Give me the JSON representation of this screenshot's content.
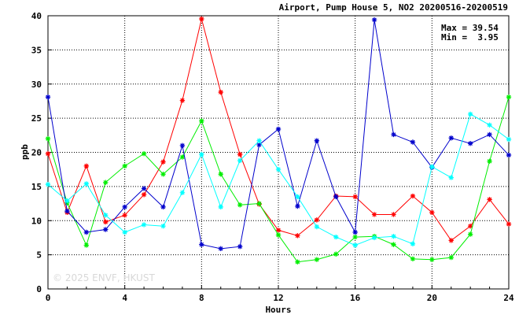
{
  "chart_data": {
    "type": "line",
    "title": "Airport, Pump House 5, NO2 20200516-20200519",
    "xlabel": "Hours",
    "ylabel": "ppb",
    "xlim": [
      0,
      24
    ],
    "ylim": [
      0,
      40
    ],
    "x_ticks": [
      "0",
      "4",
      "8",
      "12",
      "16",
      "20",
      "24"
    ],
    "y_ticks": [
      "0",
      "5",
      "10",
      "15",
      "20",
      "25",
      "30",
      "35",
      "40"
    ],
    "grid": true,
    "annotations": {
      "max_text": "Max = 39.54",
      "min_text": "Min =  3.95"
    },
    "watermark": "© 2025  ENVF, HKUST",
    "x": [
      0,
      1,
      2,
      3,
      4,
      5,
      6,
      7,
      8,
      9,
      10,
      11,
      12,
      13,
      14,
      15,
      16,
      17,
      18,
      19,
      20,
      21,
      22,
      23,
      24
    ],
    "series": [
      {
        "color": "#ff0000",
        "values": [
          19.8,
          11.2,
          18.0,
          9.8,
          10.8,
          13.8,
          18.6,
          27.6,
          39.54,
          28.8,
          19.7,
          12.4,
          8.6,
          7.8,
          10.1,
          13.6,
          13.5,
          10.9,
          10.9,
          13.6,
          11.2,
          7.1,
          9.2,
          13.1,
          9.5
        ]
      },
      {
        "color": "#00ee00",
        "values": [
          22.0,
          12.6,
          6.4,
          15.6,
          18.0,
          19.8,
          16.8,
          19.3,
          24.6,
          16.8,
          12.3,
          12.5,
          7.9,
          3.95,
          4.3,
          5.1,
          7.6,
          7.7,
          6.5,
          4.4,
          4.3,
          4.6,
          8.0,
          18.7,
          28.1
        ]
      },
      {
        "color": "#0000cc",
        "values": [
          28.1,
          11.4,
          8.3,
          8.7,
          12.0,
          14.7,
          12.0,
          21.0,
          6.5,
          5.9,
          6.2,
          21.1,
          23.4,
          12.1,
          21.7,
          13.5,
          8.3,
          39.4,
          22.6,
          21.5,
          17.8,
          22.1,
          21.3,
          22.6,
          19.6
        ]
      },
      {
        "color": "#00ffff",
        "values": [
          15.3,
          12.9,
          15.4,
          10.8,
          8.3,
          9.4,
          9.2,
          14.1,
          19.7,
          12.0,
          18.8,
          21.7,
          17.5,
          13.5,
          9.1,
          7.6,
          6.4,
          7.5,
          7.7,
          6.6,
          17.9,
          16.3,
          25.6,
          24.0,
          21.9
        ]
      }
    ]
  }
}
